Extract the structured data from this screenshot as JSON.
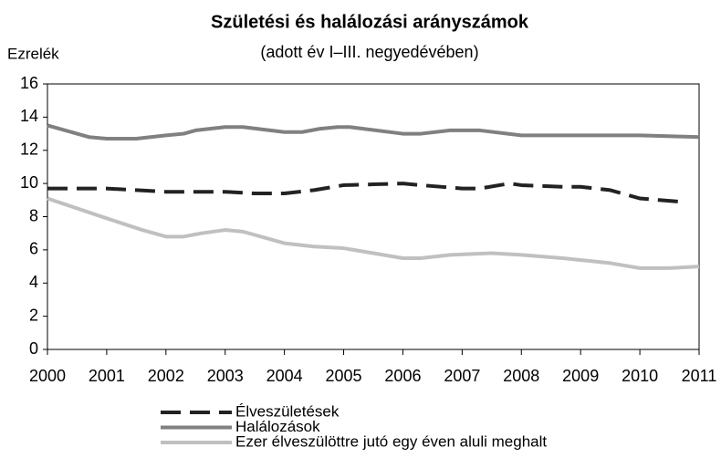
{
  "chart_data": {
    "type": "line",
    "title": "Születési és halálozási arányszámok",
    "subtitle": "(adott év I–III. negyedévében)",
    "ylabel": "Ezrelék",
    "xlim": [
      2000,
      2011
    ],
    "xticks": [
      2000,
      2001,
      2002,
      2003,
      2004,
      2005,
      2006,
      2007,
      2008,
      2009,
      2010,
      2011
    ],
    "ylim": [
      0,
      16
    ],
    "yticks": [
      0,
      2,
      4,
      6,
      8,
      10,
      12,
      14,
      16
    ],
    "grid": false,
    "legend": "bottom",
    "series": [
      {
        "name": "Élveszületések",
        "color": "#222222",
        "dash": true,
        "x": [
          2000,
          2001,
          2001.5,
          2002,
          2002.7,
          2003,
          2003.5,
          2004,
          2004.5,
          2005,
          2005.5,
          2006,
          2006.3,
          2007,
          2007.3,
          2007.8,
          2008,
          2008.7,
          2009,
          2009.5,
          2010,
          2010.7
        ],
        "values": [
          9.7,
          9.7,
          9.6,
          9.5,
          9.5,
          9.5,
          9.4,
          9.4,
          9.6,
          9.9,
          9.95,
          10.0,
          9.9,
          9.7,
          9.7,
          10.0,
          9.9,
          9.8,
          9.8,
          9.6,
          9.1,
          8.9
        ]
      },
      {
        "name": "Halálozások",
        "color": "#808080",
        "dash": false,
        "x": [
          2000,
          2000.7,
          2001,
          2001.5,
          2002,
          2002.3,
          2002.5,
          2003,
          2003.3,
          2004,
          2004.3,
          2004.6,
          2004.9,
          2005.1,
          2006,
          2006.3,
          2006.8,
          2007.3,
          2008,
          2010,
          2011
        ],
        "values": [
          13.5,
          12.8,
          12.7,
          12.7,
          12.9,
          13.0,
          13.2,
          13.4,
          13.4,
          13.1,
          13.1,
          13.3,
          13.4,
          13.4,
          13.0,
          13.0,
          13.2,
          13.2,
          12.9,
          12.9,
          12.8
        ]
      },
      {
        "name": "Ezer élveszülöttre jutó egy éven aluli meghalt",
        "color": "#c0c0c0",
        "dash": false,
        "x": [
          2000,
          2001,
          2001.6,
          2002,
          2002.3,
          2002.6,
          2003,
          2003.3,
          2004,
          2004.5,
          2005,
          2005.5,
          2006,
          2006.3,
          2006.8,
          2007.5,
          2008,
          2008.7,
          2009.5,
          2010,
          2010.5,
          2011
        ],
        "values": [
          9.1,
          7.9,
          7.2,
          6.8,
          6.8,
          7.0,
          7.2,
          7.1,
          6.4,
          6.2,
          6.1,
          5.8,
          5.5,
          5.5,
          5.7,
          5.8,
          5.7,
          5.5,
          5.2,
          4.9,
          4.9,
          5.0
        ]
      }
    ]
  }
}
